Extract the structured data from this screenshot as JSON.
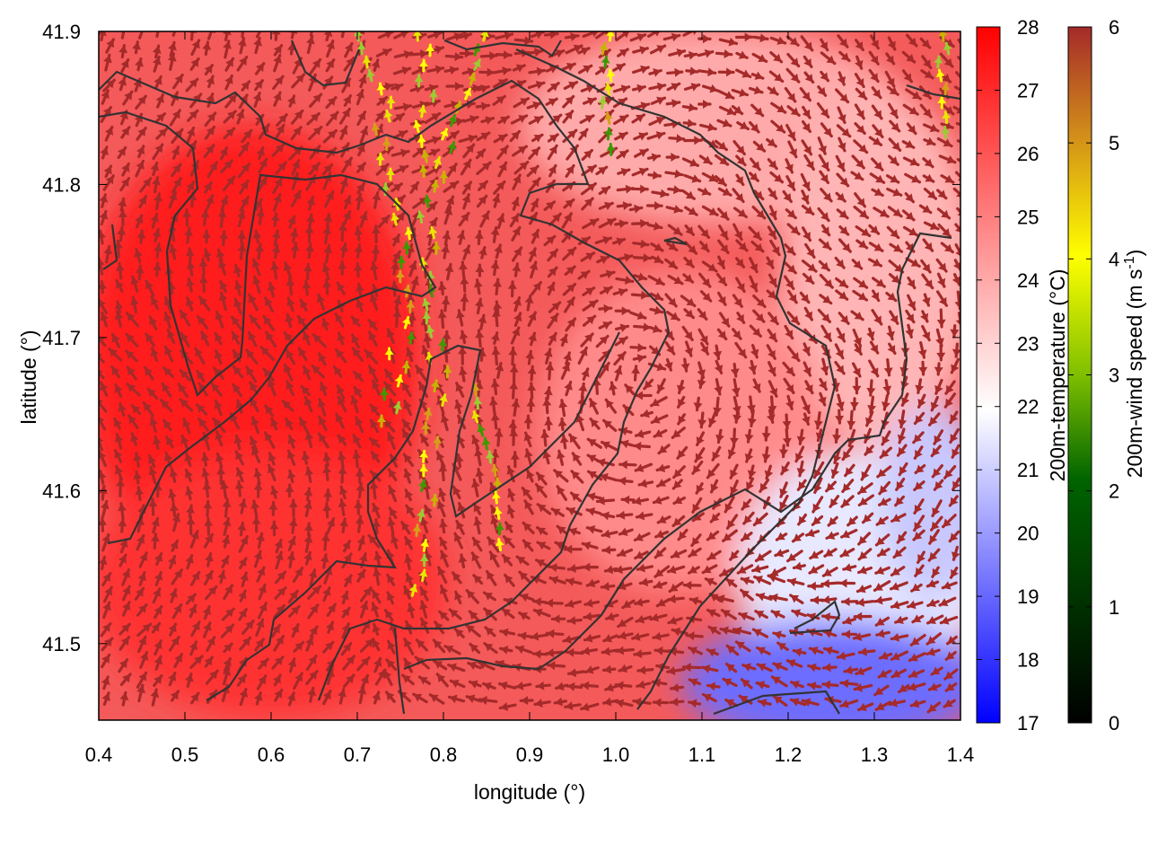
{
  "chart_data": {
    "type": "heatmap",
    "title": "",
    "xlabel": "longitude (°)",
    "ylabel": "latitude (°)",
    "xlim": [
      0.4,
      1.4
    ],
    "ylim": [
      41.45,
      41.9
    ],
    "x_ticks": [
      "0.4",
      "0.5",
      "0.6",
      "0.7",
      "0.8",
      "0.9",
      "1.0",
      "1.1",
      "1.2",
      "1.3",
      "1.4"
    ],
    "y_ticks": [
      "41.5",
      "41.6",
      "41.7",
      "41.8",
      "41.9"
    ],
    "temperature_colorbar": {
      "label": "200m-temperature (°C)",
      "min": 17,
      "max": 28,
      "ticks": [
        "17",
        "18",
        "19",
        "20",
        "21",
        "22",
        "23",
        "24",
        "25",
        "26",
        "27",
        "28"
      ],
      "colors": [
        "#0000ff",
        "#ffffff",
        "#ff0000"
      ]
    },
    "wind_colorbar": {
      "label": "200m-wind speed (m s",
      "label_sup": "-1",
      "label_end": ")",
      "min": 0,
      "max": 6,
      "ticks": [
        "0",
        "1",
        "2",
        "3",
        "4",
        "5",
        "6"
      ],
      "colors": [
        "#000000",
        "#006400",
        "#00a000",
        "#ffff00",
        "#d4a017",
        "#a52a2a"
      ]
    },
    "arrow_color": "#a52a2a",
    "contour_color": "#333333"
  }
}
